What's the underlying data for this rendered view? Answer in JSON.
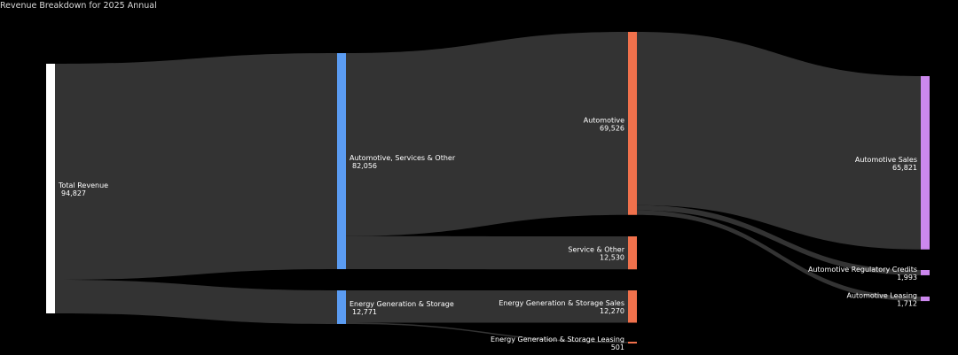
{
  "chart_data": {
    "type": "sankey",
    "title": "Revenue Breakdown for 2025 Annual",
    "nodes": [
      {
        "id": "total",
        "label": "Total Revenue",
        "value": 94827,
        "value_text": "94,827",
        "color": "#ffffff"
      },
      {
        "id": "asao",
        "label": "Automotive, Services & Other",
        "value": 82056,
        "value_text": "82,056",
        "color": "#5b9cf2"
      },
      {
        "id": "egs",
        "label": "Energy Generation & Storage",
        "value": 12771,
        "value_text": "12,771",
        "color": "#5b9cf2"
      },
      {
        "id": "auto",
        "label": "Automotive",
        "value": 69526,
        "value_text": "69,526",
        "color": "#f0714c"
      },
      {
        "id": "svc",
        "label": "Service & Other",
        "value": 12530,
        "value_text": "12,530",
        "color": "#f0714c"
      },
      {
        "id": "egs_sales",
        "label": "Energy Generation & Storage Sales",
        "value": 12270,
        "value_text": "12,270",
        "color": "#f0714c"
      },
      {
        "id": "egs_leasing",
        "label": "Energy Generation & Storage Leasing",
        "value": 501,
        "value_text": "501",
        "color": "#f0714c"
      },
      {
        "id": "auto_sales",
        "label": "Automotive Sales",
        "value": 65821,
        "value_text": "65,821",
        "color": "#cc88ee"
      },
      {
        "id": "auto_credits",
        "label": "Automotive Regulatory Credits",
        "value": 1993,
        "value_text": "1,993",
        "color": "#cc88ee"
      },
      {
        "id": "auto_leasing",
        "label": "Automotive Leasing",
        "value": 1712,
        "value_text": "1,712",
        "color": "#cc88ee"
      }
    ],
    "links": [
      {
        "source": "total",
        "target": "asao",
        "value": 82056
      },
      {
        "source": "total",
        "target": "egs",
        "value": 12771
      },
      {
        "source": "asao",
        "target": "auto",
        "value": 69526
      },
      {
        "source": "asao",
        "target": "svc",
        "value": 12530
      },
      {
        "source": "egs",
        "target": "egs_sales",
        "value": 12270
      },
      {
        "source": "egs",
        "target": "egs_leasing",
        "value": 501
      },
      {
        "source": "auto",
        "target": "auto_sales",
        "value": 65821
      },
      {
        "source": "auto",
        "target": "auto_credits",
        "value": 1993
      },
      {
        "source": "auto",
        "target": "auto_leasing",
        "value": 1712
      }
    ],
    "link_color": "#333333",
    "background": "#000000"
  }
}
